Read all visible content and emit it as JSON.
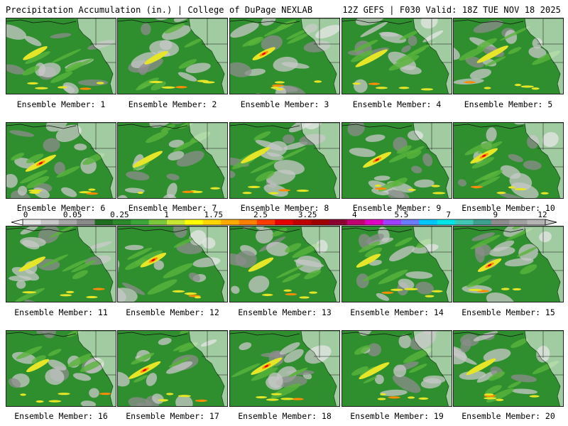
{
  "header": {
    "title": "Precipitation Accumulation (in.) | College of DuPage NEXLAB",
    "run_info": "12Z GEFS | F030 Valid: 18Z TUE NOV 18 2025"
  },
  "members": [
    {
      "label": "Ensemble Member: 1"
    },
    {
      "label": "Ensemble Member: 2"
    },
    {
      "label": "Ensemble Member: 3"
    },
    {
      "label": "Ensemble Member: 4"
    },
    {
      "label": "Ensemble Member: 5"
    },
    {
      "label": "Ensemble Member: 6"
    },
    {
      "label": "Ensemble Member: 7"
    },
    {
      "label": "Ensemble Member: 8"
    },
    {
      "label": "Ensemble Member: 9"
    },
    {
      "label": "Ensemble Member: 10"
    },
    {
      "label": "Ensemble Member: 11"
    },
    {
      "label": "Ensemble Member: 12"
    },
    {
      "label": "Ensemble Member: 13"
    },
    {
      "label": "Ensemble Member: 14"
    },
    {
      "label": "Ensemble Member: 15"
    },
    {
      "label": "Ensemble Member: 16"
    },
    {
      "label": "Ensemble Member: 17"
    },
    {
      "label": "Ensemble Member: 18"
    },
    {
      "label": "Ensemble Member: 19"
    },
    {
      "label": "Ensemble Member: 20"
    }
  ],
  "legend": {
    "tick_labels": [
      "0",
      "0.05",
      "0.25",
      "1",
      "1.75",
      "2.5",
      "3.25",
      "4",
      "5.5",
      "7",
      "9",
      "12"
    ],
    "colors": [
      "#e6e6e6",
      "#c8c8c8",
      "#a8a8a8",
      "#8a8a8a",
      "#1f6e1f",
      "#2a8a2a",
      "#3aa63a",
      "#7cc83c",
      "#c8e632",
      "#ffff00",
      "#ffd700",
      "#ffaa00",
      "#ff7f00",
      "#ff3c00",
      "#e60000",
      "#c00000",
      "#a00000",
      "#8b0030",
      "#c0006e",
      "#e000c0",
      "#a040ff",
      "#6a7bff",
      "#00c8ff",
      "#00e6e6",
      "#40c8b4",
      "#3ca08c",
      "#8c8c8c",
      "#a0a0a0",
      "#b4b4b4"
    ]
  },
  "map_colors": {
    "land": "#ffffff",
    "light_precip": "#c8c8c8",
    "trace": "#8c8c8c",
    "green": "#2f8f2f",
    "light_green": "#5ab43c",
    "yellow": "#e6e628",
    "orange": "#ff8c00",
    "red": "#e60000"
  }
}
